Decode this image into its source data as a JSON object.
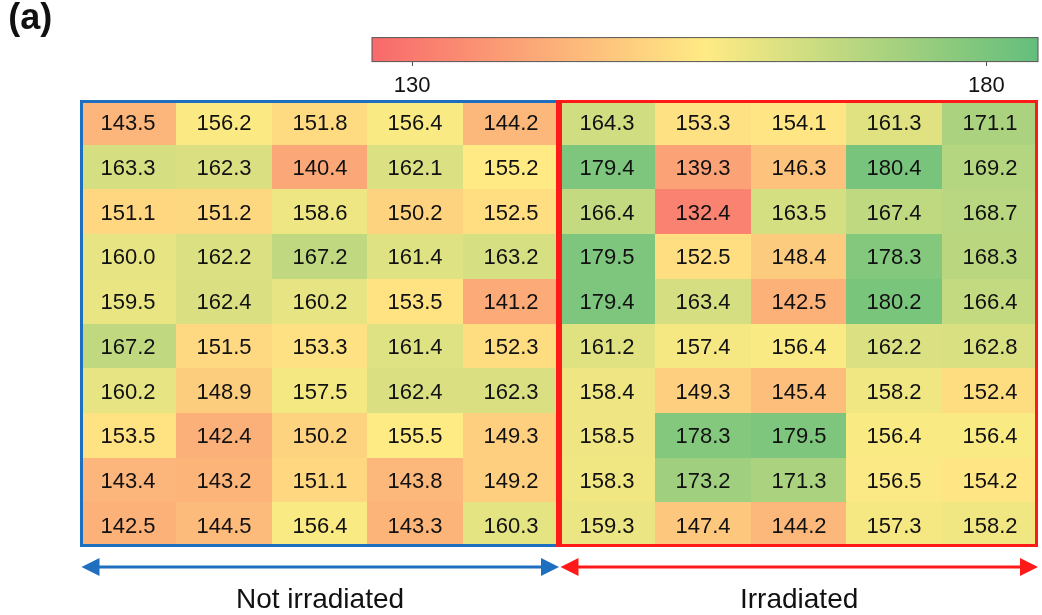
{
  "chart_data": {
    "type": "heatmap",
    "title": "(a)",
    "categories": [
      null,
      null,
      null,
      null,
      null,
      null,
      null,
      null,
      null,
      null
    ],
    "y_categories": [
      null,
      null,
      null,
      null,
      null,
      null,
      null,
      null,
      null,
      null
    ],
    "cells": [
      [
        143.5,
        156.2,
        151.8,
        156.4,
        144.2,
        164.3,
        153.3,
        154.1,
        161.3,
        171.1
      ],
      [
        163.3,
        162.3,
        140.4,
        162.1,
        155.2,
        179.4,
        139.3,
        146.3,
        180.4,
        169.2
      ],
      [
        151.1,
        151.2,
        158.6,
        150.2,
        152.5,
        166.4,
        132.4,
        163.5,
        167.4,
        168.7
      ],
      [
        160.0,
        162.2,
        167.2,
        161.4,
        163.2,
        179.5,
        152.5,
        148.4,
        178.3,
        168.3
      ],
      [
        159.5,
        162.4,
        160.2,
        153.5,
        141.2,
        179.4,
        163.4,
        142.5,
        180.2,
        166.4
      ],
      [
        167.2,
        151.5,
        153.3,
        161.4,
        152.3,
        161.2,
        157.4,
        156.4,
        162.2,
        162.8
      ],
      [
        160.2,
        148.9,
        157.5,
        162.4,
        162.3,
        158.4,
        149.3,
        145.4,
        158.2,
        152.4
      ],
      [
        153.5,
        142.4,
        150.2,
        155.5,
        149.3,
        158.5,
        178.3,
        179.5,
        156.4,
        156.4
      ],
      [
        143.4,
        143.2,
        151.1,
        143.8,
        149.2,
        158.3,
        173.2,
        171.3,
        156.5,
        154.2
      ],
      [
        142.5,
        144.5,
        156.4,
        143.3,
        160.3,
        159.3,
        147.4,
        144.2,
        157.3,
        158.2
      ]
    ],
    "cell_labels": [
      [
        "143.5",
        "156.2",
        "151.8",
        "156.4",
        "144.2",
        "164.3",
        "153.3",
        "154.1",
        "161.3",
        "171.1"
      ],
      [
        "163.3",
        "162.3",
        "140.4",
        "162.1",
        "155.2",
        "179.4",
        "139.3",
        "146.3",
        "180.4",
        "169.2"
      ],
      [
        "151.1",
        "151.2",
        "158.6",
        "150.2",
        "152.5",
        "166.4",
        "132.4",
        "163.5",
        "167.4",
        "168.7"
      ],
      [
        "160.0",
        "162.2",
        "167.2",
        "161.4",
        "163.2",
        "179.5",
        "152.5",
        "148.4",
        "178.3",
        "168.3"
      ],
      [
        "159.5",
        "162.4",
        "160.2",
        "153.5",
        "141.2",
        "179.4",
        "163.4",
        "142.5",
        "180.2",
        "166.4"
      ],
      [
        "167.2",
        "151.5",
        "153.3",
        "161.4",
        "152.3",
        "161.2",
        "157.4",
        "156.4",
        "162.2",
        "162.8"
      ],
      [
        "160.2",
        "148.9",
        "157.5",
        "162.4",
        "162.3",
        "158.4",
        "149.3",
        "145.4",
        "158.2",
        "152.4"
      ],
      [
        "153.5",
        "142.4",
        "150.2",
        "155.5",
        "149.3",
        "158.5",
        "178.3",
        "179.5",
        "156.4",
        "156.4"
      ],
      [
        "143.4",
        "143.2",
        "151.1",
        "143.8",
        "149.2",
        "158.3",
        "173.2",
        "171.3",
        "156.5",
        "154.2"
      ],
      [
        "142.5",
        "144.5",
        "156.4",
        "143.3",
        "160.3",
        "159.3",
        "147.4",
        "144.2",
        "157.3",
        "158.2"
      ]
    ],
    "colors": [
      "#f8696b",
      "#ffeb84",
      "#63be7b"
    ],
    "clim": [
      126.5,
      184.5
    ],
    "cticks": [
      130,
      180
    ],
    "annotations": [
      "Not irradiated",
      "Irradiated"
    ]
  }
}
